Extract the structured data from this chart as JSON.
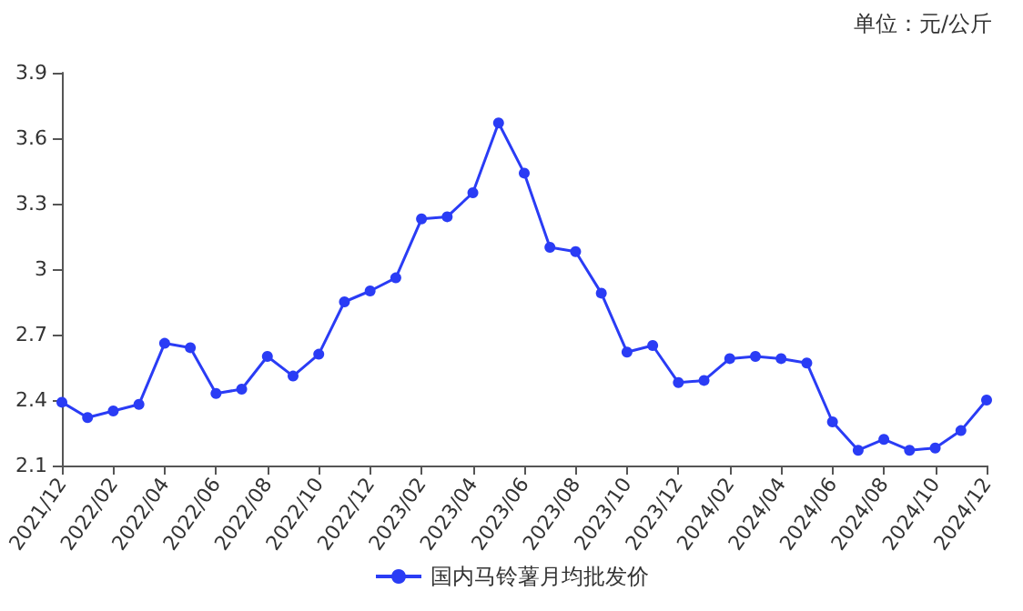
{
  "chart_data": {
    "type": "line",
    "subtitle": "单位：元/公斤",
    "categories": [
      "2021/12",
      null,
      "2022/02",
      null,
      "2022/04",
      null,
      "2022/06",
      null,
      "2022/08",
      null,
      "2022/10",
      null,
      "2022/12",
      null,
      "2023/02",
      null,
      "2023/04",
      null,
      "2023/06",
      null,
      "2023/08",
      null,
      "2023/10",
      null,
      "2023/12",
      null,
      "2024/02",
      null,
      "2024/04",
      null,
      "2024/06",
      null,
      "2024/08",
      null,
      "2024/10",
      null,
      "2024/12"
    ],
    "series": [
      {
        "name": "国内马铃薯月均批发价",
        "color": "#2a3cf5",
        "values": [
          2.39,
          2.32,
          2.35,
          2.38,
          2.66,
          2.64,
          2.43,
          2.45,
          2.6,
          2.51,
          2.61,
          2.85,
          2.9,
          2.96,
          3.23,
          3.24,
          3.35,
          3.67,
          3.44,
          3.1,
          3.08,
          2.89,
          2.62,
          2.65,
          2.48,
          2.49,
          2.59,
          2.6,
          2.59,
          2.57,
          2.3,
          2.17,
          2.22,
          2.17,
          2.18,
          2.26,
          2.4
        ]
      }
    ],
    "ylim": [
      2.1,
      3.9
    ],
    "yticks": [
      2.1,
      2.4,
      2.7,
      3,
      3.3,
      3.6,
      3.9
    ],
    "grid": false,
    "legend": "bottom",
    "marker": "circle",
    "line_style": "solid"
  }
}
